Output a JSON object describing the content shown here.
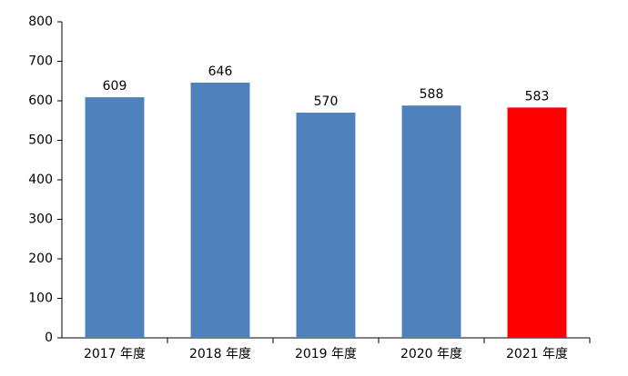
{
  "chart_data": {
    "type": "bar",
    "categories": [
      "2017 年度",
      "2018 年度",
      "2019 年度",
      "2020 年度",
      "2021 年度"
    ],
    "values": [
      609,
      646,
      570,
      588,
      583
    ],
    "colors": [
      "#4f81bd",
      "#4f81bd",
      "#4f81bd",
      "#4f81bd",
      "#ff0000"
    ],
    "ylim": [
      0,
      800
    ],
    "yticks": [
      0,
      100,
      200,
      300,
      400,
      500,
      600,
      700,
      800
    ],
    "grid": false,
    "data_labels": true
  }
}
